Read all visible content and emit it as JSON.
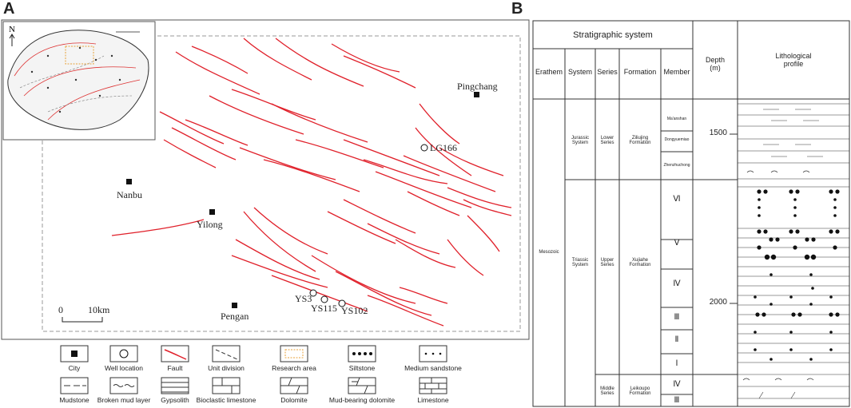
{
  "panels": {
    "a": "A",
    "b": "B"
  },
  "map": {
    "cities": [
      {
        "id": "pingchang",
        "name": "Pingchang"
      },
      {
        "id": "nanbu",
        "name": "Nanbu"
      },
      {
        "id": "yilong",
        "name": "Yilong"
      },
      {
        "id": "pengan",
        "name": "Pengan"
      }
    ],
    "wells": [
      {
        "id": "lg166",
        "name": "LG166"
      },
      {
        "id": "ys3",
        "name": "YS3"
      },
      {
        "id": "ys115",
        "name": "YS115"
      },
      {
        "id": "ys102",
        "name": "YS102"
      }
    ],
    "scale": {
      "zero": "0",
      "value": "10km"
    },
    "north": "N"
  },
  "legend": [
    {
      "id": "city",
      "label": "City"
    },
    {
      "id": "well",
      "label": "Well location"
    },
    {
      "id": "fault",
      "label": "Fault"
    },
    {
      "id": "unit",
      "label": "Unit division"
    },
    {
      "id": "research",
      "label": "Research area"
    },
    {
      "id": "siltstone",
      "label": "Siltstone"
    },
    {
      "id": "medsand",
      "label": "Medium sandstone"
    },
    {
      "id": "mudstone",
      "label": "Mudstone"
    },
    {
      "id": "brokenmud",
      "label": "Broken mud layer"
    },
    {
      "id": "gypsolith",
      "label": "Gypsolith"
    },
    {
      "id": "bioclastic",
      "label": "Bioclastic limestone"
    },
    {
      "id": "dolomite",
      "label": "Dolomite"
    },
    {
      "id": "muddolomite",
      "label": "Mud-bearing dolomite"
    },
    {
      "id": "limestone",
      "label": "Limestone"
    }
  ],
  "strat": {
    "title": "Stratigraphic system",
    "headers": {
      "erathem": "Erathem",
      "system": "System",
      "series": "Series",
      "formation": "Formation",
      "member": "Member",
      "depth": "Depth\n(m)",
      "litho": "Lithological\nprofile"
    },
    "erathem": "Mesozoic",
    "systems": [
      "Jurassic\nSystem",
      "Triassic\nSystem"
    ],
    "series": [
      "Lower\nSeries",
      "Upper\nSeries",
      "Middle\nSeries"
    ],
    "formations": [
      "Ziliujing\nFormation",
      "Xujiahe\nFormation",
      "Leikoupo\nFormation"
    ],
    "members": [
      "Ma'anshan",
      "Dongyuemiao",
      "Zhenzhuchong",
      "Ⅵ",
      "Ⅴ",
      "Ⅳ",
      "Ⅲ",
      "Ⅱ",
      "Ⅰ",
      "Ⅳ",
      "Ⅲ"
    ],
    "depths": [
      "1500",
      "2000"
    ]
  }
}
